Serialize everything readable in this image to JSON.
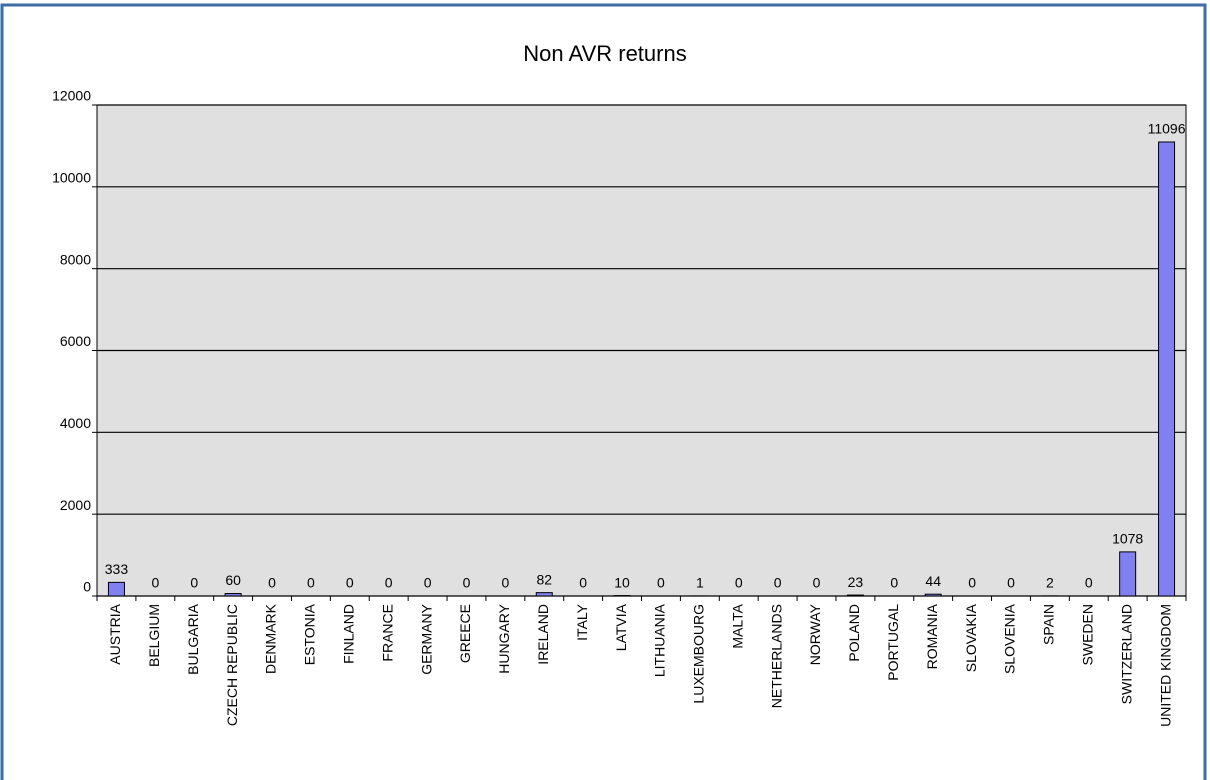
{
  "chart_data": {
    "type": "bar",
    "title": "Non AVR returns",
    "categories": [
      "AUSTRIA",
      "BELGIUM",
      "BULGARIA",
      "CZECH REPUBLIC",
      "DENMARK",
      "ESTONIA",
      "FINLAND",
      "FRANCE",
      "GERMANY",
      "GREECE",
      "HUNGARY",
      "IRELAND",
      "ITALY",
      "LATVIA",
      "LITHUANIA",
      "LUXEMBOURG",
      "MALTA",
      "NETHERLANDS",
      "NORWAY",
      "POLAND",
      "PORTUGAL",
      "ROMANIA",
      "SLOVAKIA",
      "SLOVENIA",
      "SPAIN",
      "SWEDEN",
      "SWITZERLAND",
      "UNITED KINGDOM"
    ],
    "values": [
      333,
      0,
      0,
      60,
      0,
      0,
      0,
      0,
      0,
      0,
      0,
      82,
      0,
      10,
      0,
      1,
      0,
      0,
      0,
      23,
      0,
      44,
      0,
      0,
      2,
      0,
      1078,
      11096
    ],
    "color": "#8080f0",
    "ylim": [
      0,
      12000
    ],
    "yticks": [
      0,
      2000,
      4000,
      6000,
      8000,
      10000,
      12000
    ],
    "grid": true
  }
}
